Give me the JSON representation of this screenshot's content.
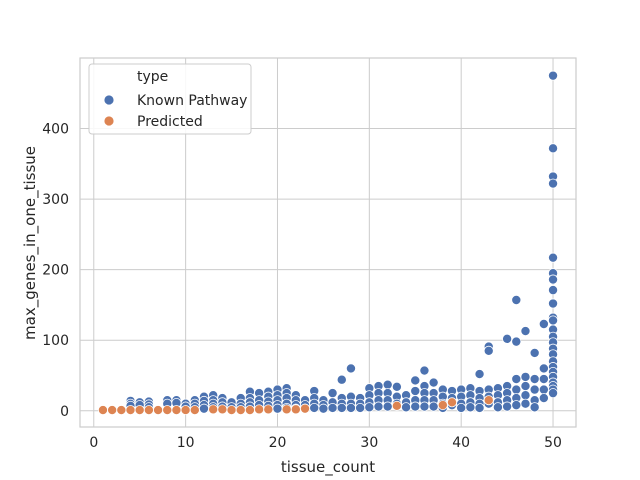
{
  "chart_data": {
    "type": "scatter",
    "title": "",
    "xlabel": "tissue_count",
    "ylabel": "max_genes_in_one_tissue",
    "xlim": [
      -1.5,
      52.5
    ],
    "ylim": [
      -23,
      500
    ],
    "xticks": [
      0,
      10,
      20,
      30,
      40,
      50
    ],
    "yticks": [
      0,
      100,
      200,
      300,
      400
    ],
    "grid": true,
    "legend": {
      "title": "type",
      "placement": "top-left"
    },
    "series": [
      {
        "name": "Known Pathway",
        "color": "#4c72b0",
        "points": [
          [
            4,
            14
          ],
          [
            4,
            10
          ],
          [
            4,
            7
          ],
          [
            5,
            12
          ],
          [
            5,
            8
          ],
          [
            6,
            13
          ],
          [
            6,
            9
          ],
          [
            6,
            5
          ],
          [
            8,
            15
          ],
          [
            8,
            10
          ],
          [
            9,
            15
          ],
          [
            9,
            11
          ],
          [
            10,
            10
          ],
          [
            10,
            6
          ],
          [
            11,
            15
          ],
          [
            11,
            10
          ],
          [
            11,
            5
          ],
          [
            12,
            20
          ],
          [
            12,
            14
          ],
          [
            12,
            8
          ],
          [
            12,
            3
          ],
          [
            13,
            22
          ],
          [
            13,
            15
          ],
          [
            13,
            10
          ],
          [
            13,
            5
          ],
          [
            14,
            18
          ],
          [
            14,
            12
          ],
          [
            14,
            6
          ],
          [
            15,
            12
          ],
          [
            15,
            5
          ],
          [
            16,
            18
          ],
          [
            16,
            10
          ],
          [
            16,
            5
          ],
          [
            17,
            27
          ],
          [
            17,
            18
          ],
          [
            17,
            12
          ],
          [
            17,
            6
          ],
          [
            18,
            25
          ],
          [
            18,
            15
          ],
          [
            18,
            8
          ],
          [
            19,
            27
          ],
          [
            19,
            20
          ],
          [
            19,
            13
          ],
          [
            19,
            7
          ],
          [
            20,
            30
          ],
          [
            20,
            22
          ],
          [
            20,
            15
          ],
          [
            20,
            8
          ],
          [
            20,
            3
          ],
          [
            21,
            32
          ],
          [
            21,
            25
          ],
          [
            21,
            18
          ],
          [
            21,
            10
          ],
          [
            21,
            4
          ],
          [
            22,
            22
          ],
          [
            22,
            15
          ],
          [
            22,
            8
          ],
          [
            22,
            3
          ],
          [
            23,
            15
          ],
          [
            23,
            8
          ],
          [
            23,
            3
          ],
          [
            24,
            28
          ],
          [
            24,
            18
          ],
          [
            24,
            10
          ],
          [
            24,
            4
          ],
          [
            25,
            15
          ],
          [
            25,
            8
          ],
          [
            25,
            3
          ],
          [
            26,
            25
          ],
          [
            26,
            12
          ],
          [
            26,
            4
          ],
          [
            27,
            44
          ],
          [
            27,
            18
          ],
          [
            27,
            10
          ],
          [
            27,
            4
          ],
          [
            28,
            60
          ],
          [
            28,
            20
          ],
          [
            28,
            10
          ],
          [
            28,
            4
          ],
          [
            29,
            18
          ],
          [
            29,
            10
          ],
          [
            29,
            4
          ],
          [
            30,
            32
          ],
          [
            30,
            22
          ],
          [
            30,
            12
          ],
          [
            30,
            5
          ],
          [
            31,
            35
          ],
          [
            31,
            25
          ],
          [
            31,
            15
          ],
          [
            31,
            6
          ],
          [
            32,
            37
          ],
          [
            32,
            25
          ],
          [
            32,
            15
          ],
          [
            32,
            6
          ],
          [
            33,
            34
          ],
          [
            33,
            20
          ],
          [
            33,
            10
          ],
          [
            34,
            22
          ],
          [
            34,
            12
          ],
          [
            34,
            5
          ],
          [
            35,
            43
          ],
          [
            35,
            28
          ],
          [
            35,
            15
          ],
          [
            35,
            6
          ],
          [
            36,
            57
          ],
          [
            36,
            35
          ],
          [
            36,
            25
          ],
          [
            36,
            15
          ],
          [
            36,
            6
          ],
          [
            37,
            40
          ],
          [
            37,
            25
          ],
          [
            37,
            15
          ],
          [
            37,
            6
          ],
          [
            38,
            30
          ],
          [
            38,
            20
          ],
          [
            38,
            10
          ],
          [
            38,
            4
          ],
          [
            39,
            28
          ],
          [
            39,
            18
          ],
          [
            39,
            8
          ],
          [
            40,
            30
          ],
          [
            40,
            20
          ],
          [
            40,
            10
          ],
          [
            40,
            4
          ],
          [
            41,
            32
          ],
          [
            41,
            22
          ],
          [
            41,
            12
          ],
          [
            41,
            5
          ],
          [
            42,
            52
          ],
          [
            42,
            28
          ],
          [
            42,
            18
          ],
          [
            42,
            10
          ],
          [
            42,
            4
          ],
          [
            43,
            91
          ],
          [
            43,
            85
          ],
          [
            43,
            30
          ],
          [
            43,
            20
          ],
          [
            43,
            10
          ],
          [
            44,
            32
          ],
          [
            44,
            22
          ],
          [
            44,
            12
          ],
          [
            44,
            5
          ],
          [
            45,
            102
          ],
          [
            45,
            35
          ],
          [
            45,
            25
          ],
          [
            45,
            15
          ],
          [
            45,
            6
          ],
          [
            46,
            157
          ],
          [
            46,
            98
          ],
          [
            46,
            45
          ],
          [
            46,
            30
          ],
          [
            46,
            18
          ],
          [
            46,
            8
          ],
          [
            47,
            113
          ],
          [
            47,
            48
          ],
          [
            47,
            35
          ],
          [
            47,
            22
          ],
          [
            47,
            10
          ],
          [
            48,
            82
          ],
          [
            48,
            45
          ],
          [
            48,
            30
          ],
          [
            48,
            15
          ],
          [
            48,
            5
          ],
          [
            49,
            123
          ],
          [
            49,
            60
          ],
          [
            49,
            45
          ],
          [
            49,
            30
          ],
          [
            49,
            18
          ],
          [
            50,
            475
          ],
          [
            50,
            372
          ],
          [
            50,
            332
          ],
          [
            50,
            322
          ],
          [
            50,
            217
          ],
          [
            50,
            195
          ],
          [
            50,
            186
          ],
          [
            50,
            171
          ],
          [
            50,
            152
          ],
          [
            50,
            132
          ],
          [
            50,
            128
          ],
          [
            50,
            115
          ],
          [
            50,
            105
          ],
          [
            50,
            97
          ],
          [
            50,
            88
          ],
          [
            50,
            80
          ],
          [
            50,
            70
          ],
          [
            50,
            62
          ],
          [
            50,
            55
          ],
          [
            50,
            48
          ],
          [
            50,
            40
          ],
          [
            50,
            35
          ],
          [
            50,
            30
          ],
          [
            50,
            25
          ]
        ]
      },
      {
        "name": "Predicted",
        "color": "#dd8452",
        "points": [
          [
            1,
            1
          ],
          [
            2,
            1
          ],
          [
            3,
            1
          ],
          [
            4,
            1
          ],
          [
            5,
            1
          ],
          [
            6,
            1
          ],
          [
            7,
            1
          ],
          [
            8,
            1
          ],
          [
            9,
            1
          ],
          [
            10,
            1
          ],
          [
            11,
            1
          ],
          [
            13,
            2
          ],
          [
            14,
            2
          ],
          [
            15,
            1
          ],
          [
            16,
            1
          ],
          [
            17,
            1
          ],
          [
            18,
            2
          ],
          [
            19,
            2
          ],
          [
            21,
            2
          ],
          [
            22,
            2
          ],
          [
            23,
            3
          ],
          [
            33,
            7
          ],
          [
            38,
            8
          ],
          [
            39,
            12
          ],
          [
            43,
            15
          ]
        ]
      }
    ]
  }
}
